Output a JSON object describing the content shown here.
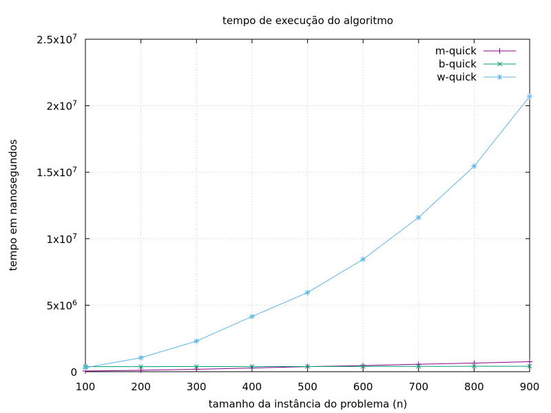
{
  "chart_data": {
    "type": "line",
    "title": "tempo de execução do algoritmo",
    "xlabel": "tamanho da instância do problema (n)",
    "ylabel": "tempo em nanosegundos",
    "x": [
      100,
      200,
      300,
      400,
      500,
      600,
      700,
      800,
      900
    ],
    "xlim": [
      100,
      900
    ],
    "ylim": [
      0,
      25000000
    ],
    "x_ticks": [
      {
        "value": 100,
        "label": "100"
      },
      {
        "value": 200,
        "label": "200"
      },
      {
        "value": 300,
        "label": "300"
      },
      {
        "value": 400,
        "label": "400"
      },
      {
        "value": 500,
        "label": "500"
      },
      {
        "value": 600,
        "label": "600"
      },
      {
        "value": 700,
        "label": "700"
      },
      {
        "value": 800,
        "label": "800"
      },
      {
        "value": 900,
        "label": "900"
      }
    ],
    "y_ticks": [
      {
        "value": 0,
        "base": "0",
        "exp": ""
      },
      {
        "value": 5000000,
        "base": "5x10",
        "exp": "6"
      },
      {
        "value": 10000000,
        "base": "1x10",
        "exp": "7"
      },
      {
        "value": 15000000,
        "base": "1.5x10",
        "exp": "7"
      },
      {
        "value": 20000000,
        "base": "2x10",
        "exp": "7"
      },
      {
        "value": 25000000,
        "base": "2.5x10",
        "exp": "7"
      }
    ],
    "grid": true,
    "legend_position": "top-right",
    "series": [
      {
        "name": "m-quick",
        "color": "#8b008b",
        "marker": "plus",
        "values": [
          50000,
          110000,
          180000,
          280000,
          380000,
          460000,
          560000,
          650000,
          750000
        ]
      },
      {
        "name": "b-quick",
        "color": "#009e73",
        "marker": "cross",
        "values": [
          380000,
          380000,
          390000,
          390000,
          390000,
          400000,
          400000,
          410000,
          410000
        ]
      },
      {
        "name": "w-quick",
        "color": "#56b4e9",
        "marker": "star",
        "values": [
          300000,
          1050000,
          2300000,
          4150000,
          5950000,
          8450000,
          11600000,
          15450000,
          20700000
        ]
      }
    ]
  }
}
